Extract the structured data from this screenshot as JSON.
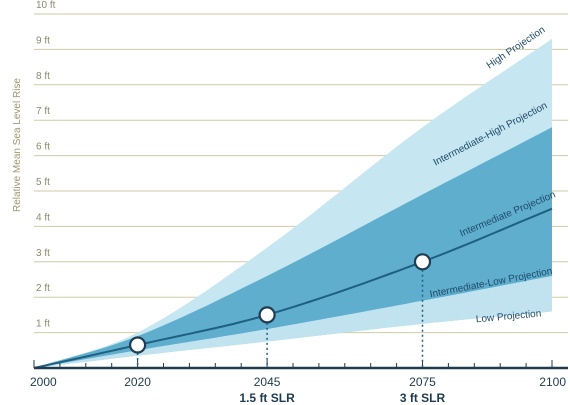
{
  "chart_data": {
    "type": "area",
    "title": "",
    "ylabel": "Relative Mean Sea Level Rise",
    "xlabel": "",
    "xlim": [
      2000,
      2100
    ],
    "ylim": [
      0,
      10
    ],
    "x_ticks": [
      2000,
      2020,
      2045,
      2075,
      2100
    ],
    "x_tick_labels": [
      "2000",
      "2020",
      "2045",
      "2075",
      "2100"
    ],
    "y_ticks": [
      1,
      2,
      3,
      4,
      5,
      6,
      7,
      8,
      9,
      10
    ],
    "y_tick_labels": [
      "1 ft",
      "2 ft",
      "3 ft",
      "4 ft",
      "5 ft",
      "6 ft",
      "7 ft",
      "8 ft",
      "9 ft",
      "10 ft"
    ],
    "grid": true,
    "colors": {
      "high_band": "#c6e6f1",
      "inter_high_band": "#8ecde3",
      "inner_band": "#4fa3c7",
      "low_band": "#c6e6f1",
      "center_line": "#1f5f80",
      "grid": "#cfcba6",
      "axis": "#1f3b4d"
    },
    "series": [
      {
        "name": "High Projection",
        "x": [
          2000,
          2020,
          2045,
          2075,
          2100
        ],
        "values": [
          0,
          1.0,
          3.4,
          6.8,
          9.3
        ]
      },
      {
        "name": "Intermediate-High Projection",
        "x": [
          2000,
          2020,
          2045,
          2075,
          2100
        ],
        "values": [
          0,
          0.9,
          2.6,
          4.9,
          6.8
        ]
      },
      {
        "name": "Intermediate Projection",
        "x": [
          2000,
          2020,
          2045,
          2075,
          2100
        ],
        "values": [
          0,
          0.65,
          1.5,
          3.0,
          4.5
        ]
      },
      {
        "name": "Intermediate-Low Projection",
        "x": [
          2000,
          2020,
          2045,
          2075,
          2100
        ],
        "values": [
          0,
          0.5,
          1.1,
          1.9,
          2.6
        ]
      },
      {
        "name": "Low Projection",
        "x": [
          2000,
          2020,
          2045,
          2075,
          2100
        ],
        "values": [
          0,
          0.35,
          0.75,
          1.25,
          1.6
        ]
      }
    ],
    "markers": [
      {
        "x": 2020,
        "y": 0.65
      },
      {
        "x": 2045,
        "y": 1.5
      },
      {
        "x": 2075,
        "y": 3.0
      }
    ],
    "annotations": [
      {
        "x": 2045,
        "label": "1.5 ft SLR"
      },
      {
        "x": 2075,
        "label": "3 ft SLR"
      }
    ]
  }
}
